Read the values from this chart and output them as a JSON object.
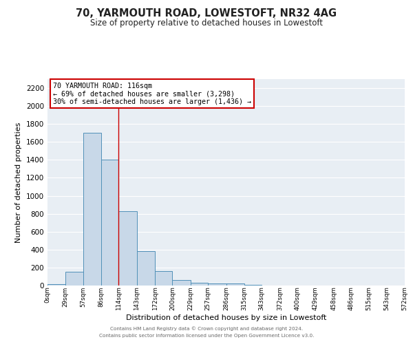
{
  "title": "70, YARMOUTH ROAD, LOWESTOFT, NR32 4AG",
  "subtitle": "Size of property relative to detached houses in Lowestoft",
  "xlabel": "Distribution of detached houses by size in Lowestoft",
  "ylabel": "Number of detached properties",
  "bar_edges": [
    0,
    29,
    57,
    86,
    114,
    143,
    172,
    200,
    229,
    257,
    286,
    315,
    343,
    372,
    400,
    429,
    458,
    486,
    515,
    543,
    572
  ],
  "bar_heights": [
    15,
    155,
    1700,
    1400,
    830,
    385,
    160,
    65,
    30,
    25,
    25,
    5,
    0,
    0,
    0,
    0,
    0,
    0,
    0,
    0
  ],
  "bar_color": "#c8d8e8",
  "bar_edge_color": "#5090b8",
  "property_line_x": 114,
  "property_line_color": "#cc0000",
  "ylim": [
    0,
    2300
  ],
  "yticks": [
    0,
    200,
    400,
    600,
    800,
    1000,
    1200,
    1400,
    1600,
    1800,
    2000,
    2200
  ],
  "xtick_labels": [
    "0sqm",
    "29sqm",
    "57sqm",
    "86sqm",
    "114sqm",
    "143sqm",
    "172sqm",
    "200sqm",
    "229sqm",
    "257sqm",
    "286sqm",
    "315sqm",
    "343sqm",
    "372sqm",
    "400sqm",
    "429sqm",
    "458sqm",
    "486sqm",
    "515sqm",
    "543sqm",
    "572sqm"
  ],
  "annotation_box_text_line1": "70 YARMOUTH ROAD: 116sqm",
  "annotation_box_text_line2": "← 69% of detached houses are smaller (3,298)",
  "annotation_box_text_line3": "30% of semi-detached houses are larger (1,436) →",
  "annotation_box_color": "#cc0000",
  "footer_line1": "Contains HM Land Registry data © Crown copyright and database right 2024.",
  "footer_line2": "Contains public sector information licensed under the Open Government Licence v3.0.",
  "bg_color": "#e8eef4",
  "grid_color": "#ffffff",
  "fig_bg_color": "#ffffff"
}
